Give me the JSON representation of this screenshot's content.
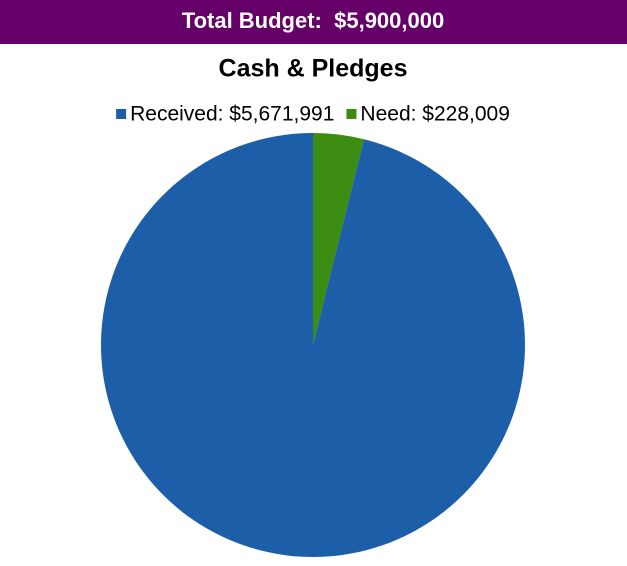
{
  "header": {
    "title": "Total Budget:  $5,900,000"
  },
  "chart_data": {
    "type": "pie",
    "title": "Cash & Pledges",
    "categories": [
      "Received: $5,671,991",
      "Need: $228,009"
    ],
    "values": [
      5671991,
      228009
    ],
    "colors": [
      "#1d5ea8",
      "#3b8c10"
    ],
    "legend": "top"
  }
}
